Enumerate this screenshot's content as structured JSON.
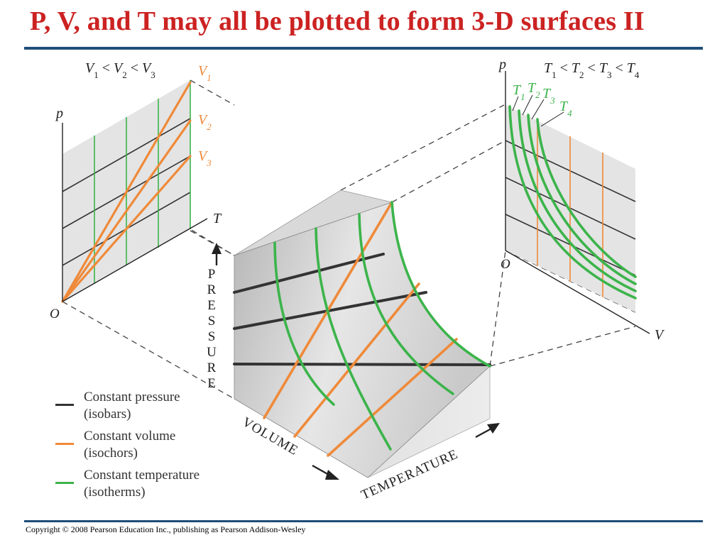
{
  "slide": {
    "title": "P, V, and T may all be plotted to form 3-D surfaces II",
    "copyright": "Copyright © 2008 Pearson Education Inc., publishing as Pearson Addison-Wesley"
  },
  "colors": {
    "title": "#cc2222",
    "rule": "#1f4e79",
    "isobar": "#333333",
    "isochor": "#ef8a3a",
    "isotherm": "#3cb44b",
    "panel": "#e4e4e4"
  },
  "pt_panel": {
    "condition": {
      "v1": "V",
      "s1": "1",
      "lt1": " < ",
      "v2": "V",
      "s2": "2",
      "lt2": " < ",
      "v3": "V",
      "s3": "3"
    },
    "p_axis": "p",
    "t_axis": "T",
    "origin": "O",
    "lines": [
      {
        "sym": "V",
        "sub": "1"
      },
      {
        "sym": "V",
        "sub": "2"
      },
      {
        "sym": "V",
        "sub": "3"
      }
    ]
  },
  "pv_panel": {
    "condition": {
      "t1": "T",
      "s1": "1",
      "lt1": " < ",
      "t2": "T",
      "s2": "2",
      "lt2": " < ",
      "t3": "T",
      "s3": "3",
      "lt3": " < ",
      "t4": "T",
      "s4": "4"
    },
    "p_axis": "p",
    "v_axis": "V",
    "origin": "O",
    "curves": [
      {
        "sym": "T",
        "sub": "1"
      },
      {
        "sym": "T",
        "sub": "2"
      },
      {
        "sym": "T",
        "sub": "3"
      },
      {
        "sym": "T",
        "sub": "4"
      }
    ]
  },
  "surface_axes": {
    "pressure": "PRESSURE",
    "volume": "VOLUME",
    "temperature": "TEMPERATURE"
  },
  "legend": [
    {
      "line1": "Constant pressure",
      "line2": "(isobars)",
      "color": "#333333"
    },
    {
      "line1": "Constant volume",
      "line2": "(isochors)",
      "color": "#ef8a3a"
    },
    {
      "line1": "Constant temperature",
      "line2": "(isotherms)",
      "color": "#3cb44b"
    }
  ]
}
